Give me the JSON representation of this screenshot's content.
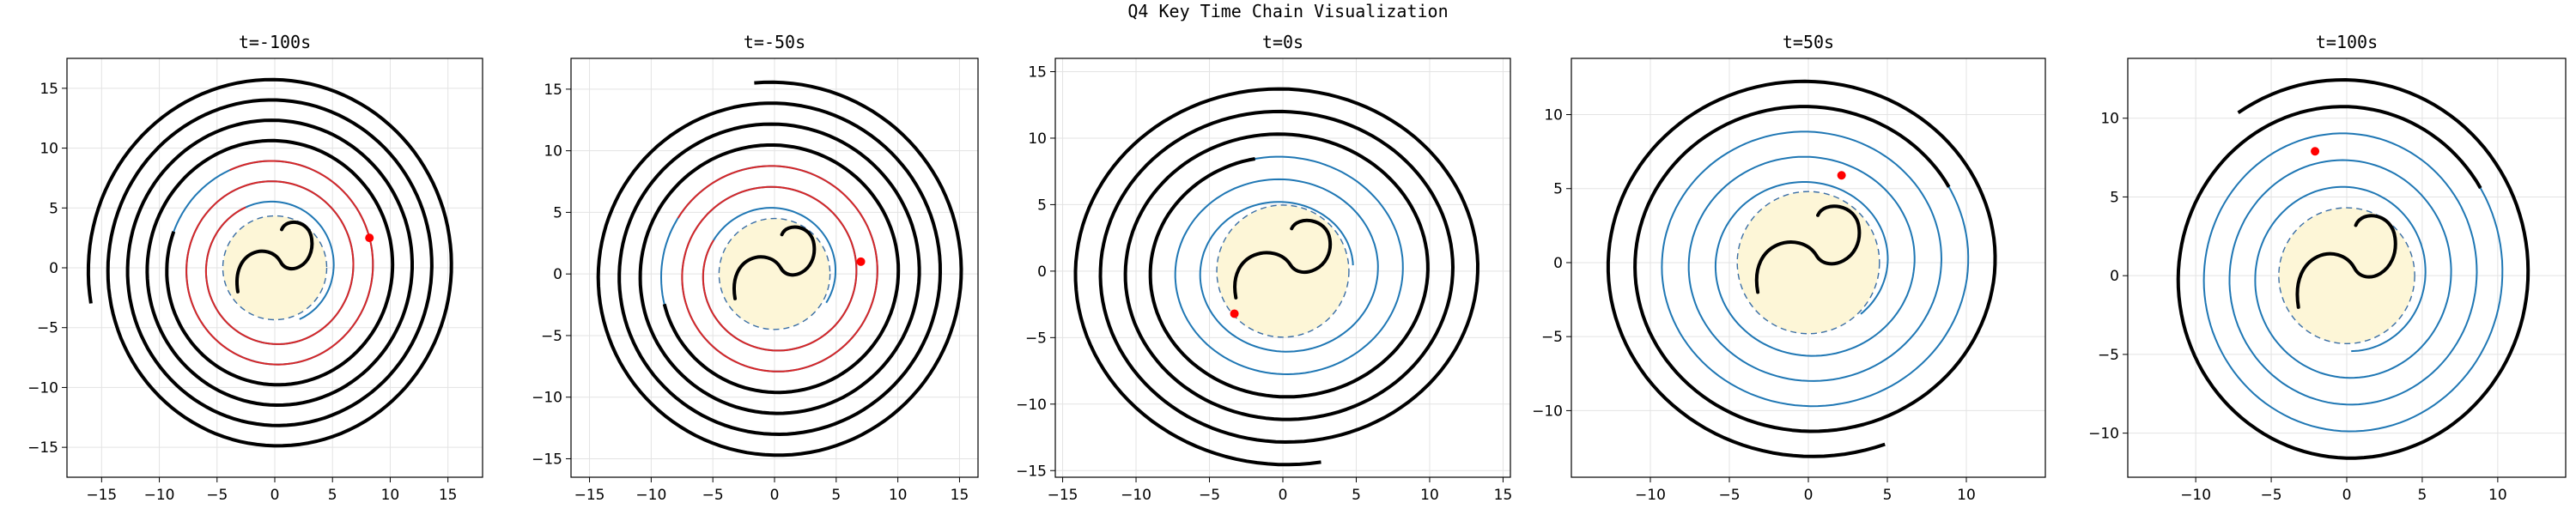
{
  "title": "Q4 Key Time Chain Visualization",
  "colors": {
    "disk_fill": "#fdf6d7",
    "disk_edge": "#3a6ea5",
    "spiral_blue": "#1f77b4",
    "spiral_red": "#d62728",
    "chain": "#000000",
    "head": "#ff0000"
  },
  "chart_data": [
    {
      "type": "line",
      "title": "t=-100s",
      "xlim": [
        -18,
        18
      ],
      "ylim": [
        -17.5,
        17.5
      ],
      "xticks": [
        -15,
        -10,
        -5,
        0,
        5,
        10,
        15
      ],
      "yticks": [
        -15,
        -10,
        -5,
        0,
        5,
        10,
        15
      ],
      "grid": true,
      "disk_radius": 4.5,
      "head": [
        8.2,
        2.5
      ],
      "series": [
        {
          "name": "",
          "values": []
        }
      ]
    },
    {
      "type": "line",
      "title": "t=-50s",
      "xlim": [
        -16.5,
        16.5
      ],
      "ylim": [
        -16.5,
        17.5
      ],
      "xticks": [
        -15,
        -10,
        -5,
        0,
        5,
        10,
        15
      ],
      "yticks": [
        -15,
        -10,
        -5,
        0,
        5,
        10,
        15
      ],
      "grid": true,
      "disk_radius": 4.5,
      "head": [
        7.0,
        1.0
      ],
      "series": [
        {
          "name": "",
          "values": []
        }
      ]
    },
    {
      "type": "line",
      "title": "t=0s",
      "xlim": [
        -15.5,
        15.5
      ],
      "ylim": [
        -15.5,
        16
      ],
      "xticks": [
        -15,
        -10,
        -5,
        0,
        5,
        10,
        15
      ],
      "yticks": [
        -15,
        -10,
        -5,
        0,
        5,
        10,
        15
      ],
      "grid": true,
      "disk_radius": 4.5,
      "head": [
        -3.3,
        -3.2
      ],
      "series": [
        {
          "name": "",
          "values": []
        }
      ]
    },
    {
      "type": "line",
      "title": "t=50s",
      "xlim": [
        -15,
        15
      ],
      "ylim": [
        -14.5,
        13.8
      ],
      "xticks": [
        -10,
        -5,
        0,
        5,
        10
      ],
      "yticks": [
        -10,
        -5,
        0,
        5,
        10
      ],
      "grid": true,
      "disk_radius": 4.5,
      "head": [
        2.1,
        5.9
      ],
      "series": [
        {
          "name": "",
          "values": []
        }
      ]
    },
    {
      "type": "line",
      "title": "t=100s",
      "xlim": [
        -14.5,
        14.5
      ],
      "ylim": [
        -12.8,
        13.8
      ],
      "xticks": [
        -10,
        -5,
        0,
        5,
        10
      ],
      "yticks": [
        -10,
        -5,
        0,
        5,
        10
      ],
      "grid": true,
      "disk_radius": 4.5,
      "head": [
        -2.1,
        7.9
      ],
      "series": [
        {
          "name": "",
          "values": []
        }
      ]
    }
  ]
}
